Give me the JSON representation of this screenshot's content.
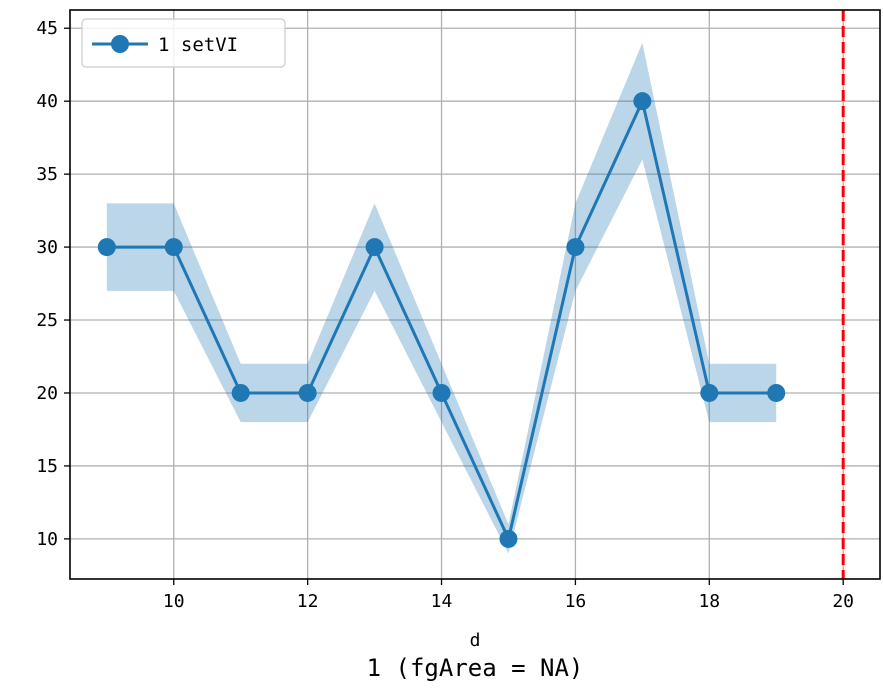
{
  "chart_data": {
    "type": "line",
    "title": "1 (fgArea = NA)",
    "xlabel": "d",
    "ylabel": "",
    "xlim": [
      8.45,
      20.55
    ],
    "ylim": [
      7.25,
      46.25
    ],
    "xticks": [
      10,
      12,
      14,
      16,
      18,
      20
    ],
    "yticks": [
      10,
      15,
      20,
      25,
      30,
      35,
      40,
      45
    ],
    "grid": true,
    "legend_position": "top-left",
    "series": [
      {
        "name": "1 setVI",
        "color": "#1f77b4",
        "x": [
          9,
          10,
          11,
          12,
          13,
          14,
          15,
          16,
          17,
          18,
          19
        ],
        "y": [
          30,
          30,
          20,
          20,
          30,
          20,
          10,
          30,
          40,
          20,
          20
        ],
        "band_lower": [
          27,
          27,
          18,
          18,
          27,
          18,
          9,
          27,
          36,
          18,
          18
        ],
        "band_upper": [
          33,
          33,
          22,
          22,
          33,
          22,
          11,
          33,
          44,
          22,
          22
        ]
      }
    ],
    "reference_line": {
      "x": 20,
      "color": "#ff0000",
      "style": "dashed"
    }
  }
}
